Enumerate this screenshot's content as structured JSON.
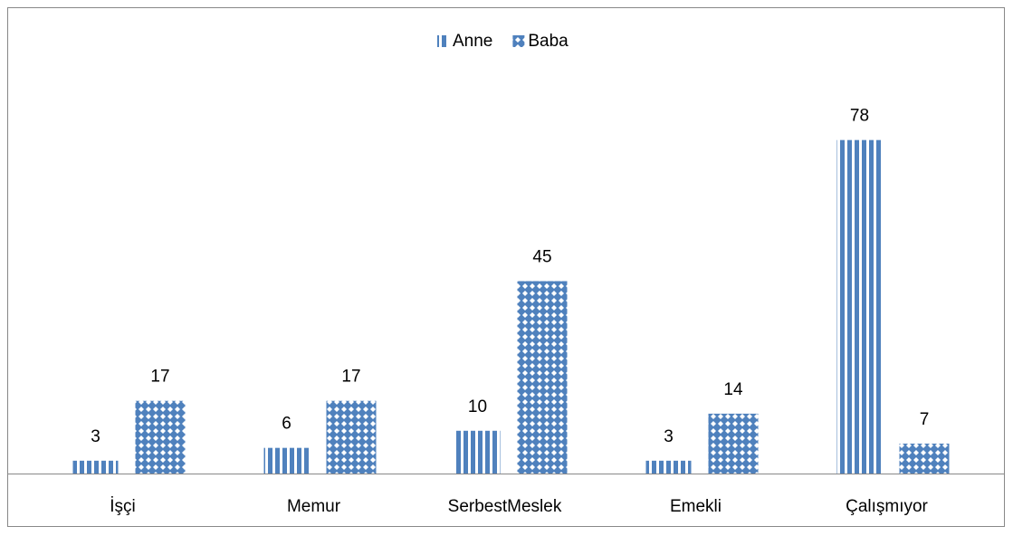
{
  "chart_data": {
    "type": "bar",
    "categories": [
      "İşçi",
      "Memur",
      "SerbestMeslek",
      "Emekli",
      "Çalışmıyor"
    ],
    "series": [
      {
        "name": "Anne",
        "color": "#4f81bd",
        "values": [
          3,
          6,
          10,
          3,
          78
        ]
      },
      {
        "name": "Baba",
        "color": "#4f81bd",
        "values": [
          17,
          17,
          45,
          14,
          7
        ]
      }
    ],
    "ylim": [
      0,
      90
    ],
    "legend": "top"
  }
}
